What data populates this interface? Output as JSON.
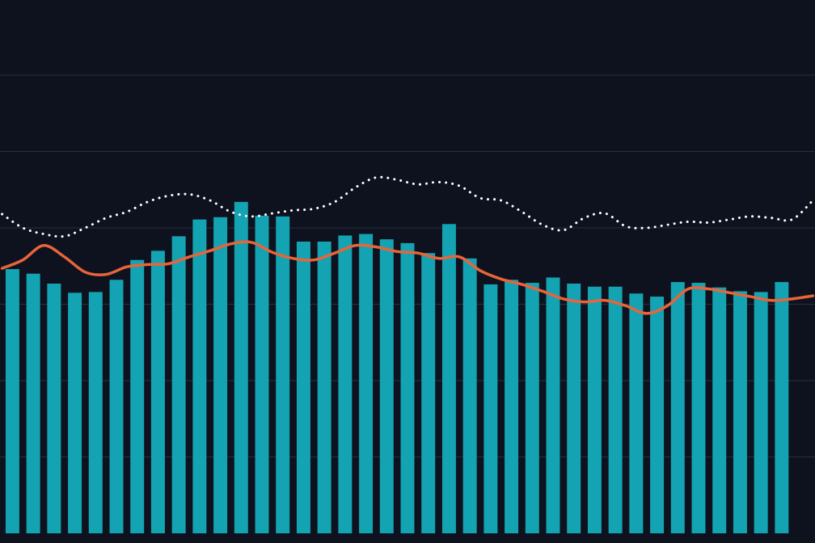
{
  "chart_data": {
    "type": "combo",
    "background": "#0e121e",
    "grid": true,
    "grid_color": "#243140",
    "xlim": [
      -0.6,
      38.6
    ],
    "ylim": [
      0,
      7
    ],
    "yticks": [
      1,
      2,
      3,
      4,
      5,
      6
    ],
    "series": [
      {
        "type": "bar",
        "color": "#14a3b2",
        "x": [
          0,
          1,
          2,
          3,
          4,
          5,
          6,
          7,
          8,
          9,
          10,
          11,
          12,
          13,
          14,
          15,
          16,
          17,
          18,
          19,
          20,
          21,
          22,
          23,
          24,
          25,
          26,
          27,
          28,
          29,
          30,
          31,
          32,
          33,
          34,
          35,
          36,
          37
        ],
        "values": [
          3.46,
          3.4,
          3.27,
          3.15,
          3.16,
          3.32,
          3.58,
          3.7,
          3.89,
          4.11,
          4.14,
          4.34,
          4.16,
          4.15,
          3.82,
          3.82,
          3.9,
          3.92,
          3.85,
          3.8,
          3.67,
          4.05,
          3.6,
          3.26,
          3.32,
          3.28,
          3.35,
          3.27,
          3.23,
          3.23,
          3.14,
          3.1,
          3.29,
          3.28,
          3.22,
          3.17,
          3.16,
          3.29
        ]
      },
      {
        "type": "line",
        "color": "#e8643a",
        "dash": false,
        "x": [
          -0.5,
          0.5,
          1.5,
          2.5,
          3.5,
          4.5,
          5.5,
          6.5,
          7.5,
          8.5,
          9.5,
          10.5,
          11.5,
          12.5,
          13.5,
          14.5,
          15.5,
          16.5,
          17.5,
          18.5,
          19.5,
          20.5,
          21.5,
          22.5,
          23.5,
          24.5,
          25.5,
          26.5,
          27.5,
          28.5,
          29.5,
          30.5,
          31.5,
          32.5,
          33.5,
          34.5,
          35.5,
          36.5,
          37.5,
          38.5
        ],
        "values": [
          3.47,
          3.58,
          3.77,
          3.62,
          3.42,
          3.39,
          3.49,
          3.52,
          3.53,
          3.62,
          3.7,
          3.79,
          3.81,
          3.68,
          3.6,
          3.58,
          3.67,
          3.77,
          3.75,
          3.69,
          3.67,
          3.6,
          3.62,
          3.44,
          3.33,
          3.26,
          3.17,
          3.07,
          3.03,
          3.05,
          2.98,
          2.88,
          2.98,
          3.2,
          3.2,
          3.15,
          3.1,
          3.05,
          3.07,
          3.11
        ]
      },
      {
        "type": "line",
        "color": "#ffffff",
        "dash": true,
        "x": [
          -0.5,
          0.5,
          1.5,
          2.5,
          3.5,
          4.5,
          5.5,
          6.5,
          7.5,
          8.5,
          9.5,
          10.5,
          11.5,
          12.5,
          13.5,
          14.5,
          15.5,
          16.5,
          17.5,
          18.5,
          19.5,
          20.5,
          21.5,
          22.5,
          23.5,
          24.5,
          25.5,
          26.5,
          27.5,
          28.5,
          29.5,
          30.5,
          31.5,
          32.5,
          33.5,
          34.5,
          35.5,
          36.5,
          37.5,
          38.5
        ],
        "values": [
          4.18,
          4.0,
          3.92,
          3.89,
          4.0,
          4.13,
          4.21,
          4.34,
          4.42,
          4.44,
          4.36,
          4.21,
          4.15,
          4.19,
          4.23,
          4.25,
          4.34,
          4.53,
          4.66,
          4.63,
          4.57,
          4.6,
          4.55,
          4.39,
          4.36,
          4.21,
          4.04,
          3.97,
          4.13,
          4.19,
          4.02,
          4.0,
          4.04,
          4.08,
          4.07,
          4.11,
          4.15,
          4.13,
          4.11,
          4.36
        ]
      }
    ]
  }
}
